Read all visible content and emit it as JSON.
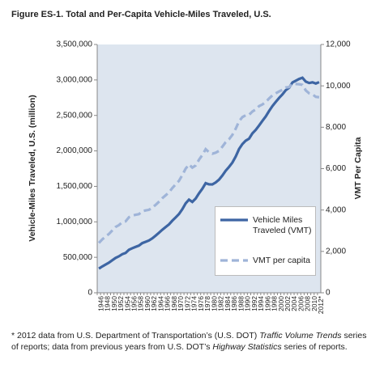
{
  "chart_data": {
    "type": "line",
    "title": "Figure ES-1. Total and Per-Capita Vehicle-Miles Traveled, U.S.",
    "y_label": "Vehicle-Miles Traveled, U.S. (million)",
    "y2_label": "VMT Per Capita",
    "categories": [
      "1946",
      null,
      "1948",
      null,
      "1950",
      null,
      "1952",
      null,
      "1954",
      null,
      "1956",
      null,
      "1958",
      null,
      "1960",
      null,
      "1962",
      null,
      "1964",
      null,
      "1966",
      null,
      "1968",
      null,
      "1970",
      null,
      "1972",
      null,
      "1974",
      null,
      "1976",
      null,
      "1978",
      null,
      "1980",
      null,
      "1982",
      null,
      "1984",
      null,
      "1986",
      null,
      "1988",
      null,
      "1990",
      null,
      "1992",
      null,
      "1994",
      null,
      "1996",
      null,
      "1998",
      null,
      "2000",
      null,
      "2002",
      null,
      "2004",
      null,
      "2006",
      null,
      "2008",
      null,
      "2010",
      null,
      "2012*"
    ],
    "series": [
      {
        "name": "Vehicle Miles Traveled (VMT)",
        "color": "#3d65a3",
        "dash": false,
        "axis": "y",
        "values": [
          341000,
          371000,
          398000,
          424000,
          458000,
          491000,
          514000,
          544000,
          561000,
          606000,
          628000,
          647000,
          665000,
          700000,
          718000,
          737000,
          767000,
          805000,
          846000,
          888000,
          926000,
          964000,
          1016000,
          1062000,
          1110000,
          1178000,
          1260000,
          1313000,
          1281000,
          1328000,
          1402000,
          1467000,
          1545000,
          1529000,
          1527000,
          1555000,
          1595000,
          1653000,
          1720000,
          1774000,
          1835000,
          1921000,
          2026000,
          2096000,
          2144000,
          2172000,
          2247000,
          2296000,
          2358000,
          2423000,
          2486000,
          2562000,
          2632000,
          2691000,
          2747000,
          2797000,
          2856000,
          2890000,
          2965000,
          2989000,
          3014000,
          3031000,
          2977000,
          2957000,
          2967000,
          2950000,
          2969000
        ]
      },
      {
        "name": "VMT per capita",
        "color": "#9fb4d8",
        "dash": true,
        "axis": "y2",
        "values": [
          2410,
          2580,
          2720,
          2840,
          3010,
          3180,
          3270,
          3410,
          3450,
          3650,
          3730,
          3770,
          3800,
          3940,
          3980,
          4010,
          4110,
          4250,
          4400,
          4570,
          4710,
          4850,
          5060,
          5240,
          5410,
          5690,
          6000,
          6200,
          6050,
          6150,
          6430,
          6660,
          6940,
          6790,
          6720,
          6770,
          6860,
          7060,
          7280,
          7420,
          7630,
          7930,
          8290,
          8490,
          8580,
          8600,
          8760,
          8860,
          9020,
          9100,
          9220,
          9390,
          9540,
          9640,
          9730,
          9810,
          9920,
          9940,
          10100,
          10090,
          10080,
          10050,
          9780,
          9640,
          9590,
          9470,
          9450
        ]
      }
    ],
    "ylim": [
      0,
      3500000
    ],
    "yticks": [
      0,
      {
        "value": 500000,
        "label": "500,000"
      },
      {
        "value": 1000000,
        "label": "1,000,000"
      },
      {
        "value": 1500000,
        "label": "1,500,000"
      },
      {
        "value": 2000000,
        "label": "2,000,000"
      },
      {
        "value": 2500000,
        "label": "2,500,000"
      },
      {
        "value": 3000000,
        "label": "3,000,000"
      },
      {
        "value": 3500000,
        "label": "3,500,000"
      }
    ],
    "y2lim": [
      0,
      12000
    ],
    "y2ticks": [
      0,
      {
        "value": 2000,
        "label": "2,000"
      },
      {
        "value": 4000,
        "label": "4,000"
      },
      {
        "value": 6000,
        "label": "6,000"
      },
      {
        "value": 8000,
        "label": "8,000"
      },
      {
        "value": 10000,
        "label": "10,000"
      },
      {
        "value": 12000,
        "label": "12,000"
      }
    ],
    "grid": false,
    "legend": "lower right",
    "plot_background": "#dde5ef"
  },
  "footnote": [
    "* 2012 data from U.S. Department of Transportation’s (U.S. DOT) ",
    "Traffic Volume Trends",
    " series of reports; data from previous years from U.S. DOT’s ",
    "Highway Statistics",
    " series of reports."
  ]
}
